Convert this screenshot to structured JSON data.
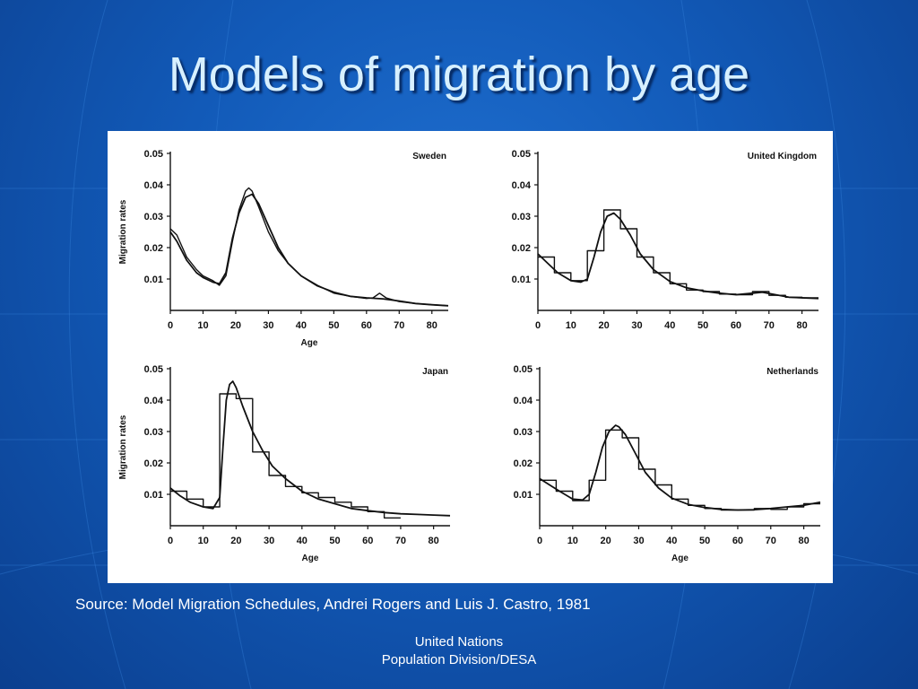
{
  "slide": {
    "title": "Models of migration by age",
    "source": "Source: Model Migration Schedules, Andrei Rogers and Luis J. Castro, 1981",
    "footer_line1": "United Nations",
    "footer_line2": "Population Division/DESA"
  },
  "chart_data": [
    {
      "type": "line",
      "title": "Sweden",
      "ylabel": "Migration rates",
      "xlabel": "Age",
      "xlim": [
        0,
        85
      ],
      "ylim": [
        0,
        0.05
      ],
      "xticks": [
        "0",
        "10",
        "20",
        "30",
        "40",
        "50",
        "60",
        "70",
        "80"
      ],
      "yticks": [
        "0.01",
        "0.02",
        "0.03",
        "0.04",
        "0.05"
      ],
      "series": [
        {
          "x": [
            0,
            2,
            5,
            8,
            10,
            13,
            15,
            17,
            19,
            21,
            23,
            24,
            25,
            27,
            30,
            33,
            36,
            40,
            45,
            50,
            55,
            60,
            62,
            64,
            66,
            70,
            75,
            80,
            85
          ],
          "y": [
            0.026,
            0.024,
            0.017,
            0.013,
            0.011,
            0.0095,
            0.008,
            0.011,
            0.022,
            0.032,
            0.038,
            0.039,
            0.038,
            0.033,
            0.025,
            0.019,
            0.015,
            0.011,
            0.008,
            0.0055,
            0.0045,
            0.0038,
            0.004,
            0.0055,
            0.004,
            0.0028,
            0.0022,
            0.0018,
            0.0015
          ]
        },
        {
          "x": [
            0,
            2,
            5,
            8,
            10,
            13,
            15,
            17,
            19,
            21,
            23,
            25,
            27,
            30,
            33,
            36,
            40,
            45,
            50,
            55,
            60,
            65,
            70,
            75,
            80,
            85
          ],
          "y": [
            0.025,
            0.022,
            0.016,
            0.012,
            0.0105,
            0.009,
            0.0085,
            0.012,
            0.023,
            0.031,
            0.036,
            0.037,
            0.034,
            0.027,
            0.02,
            0.015,
            0.011,
            0.0078,
            0.0058,
            0.0045,
            0.004,
            0.0037,
            0.003,
            0.0022,
            0.0018,
            0.0015
          ]
        }
      ]
    },
    {
      "type": "line",
      "title": "United Kingdom",
      "ylabel": "",
      "xlabel": "",
      "xlim": [
        0,
        85
      ],
      "ylim": [
        0,
        0.05
      ],
      "xticks": [
        "0",
        "10",
        "20",
        "30",
        "40",
        "50",
        "60",
        "70",
        "80"
      ],
      "yticks": [
        "0.01",
        "0.02",
        "0.03",
        "0.04",
        "0.05"
      ],
      "series": [
        {
          "x": [
            0,
            5,
            5,
            10,
            10,
            15,
            15,
            20,
            20,
            25,
            25,
            30,
            30,
            35,
            35,
            40,
            40,
            45,
            45,
            50,
            50,
            55,
            55,
            60,
            60,
            65,
            65,
            70,
            70,
            75,
            75,
            80,
            80,
            85
          ],
          "y": [
            0.017,
            0.017,
            0.012,
            0.012,
            0.0095,
            0.0095,
            0.019,
            0.019,
            0.032,
            0.032,
            0.026,
            0.026,
            0.017,
            0.017,
            0.012,
            0.012,
            0.0085,
            0.0085,
            0.0065,
            0.0065,
            0.006,
            0.006,
            0.0052,
            0.0052,
            0.005,
            0.005,
            0.006,
            0.006,
            0.0048,
            0.0048,
            0.0042,
            0.0042,
            0.004,
            0.004
          ]
        },
        {
          "x": [
            0,
            3,
            6,
            10,
            13,
            15,
            17,
            19,
            21,
            23,
            25,
            28,
            31,
            35,
            40,
            45,
            50,
            55,
            60,
            65,
            68,
            72,
            76,
            80,
            85
          ],
          "y": [
            0.018,
            0.015,
            0.012,
            0.0095,
            0.009,
            0.01,
            0.017,
            0.025,
            0.03,
            0.031,
            0.029,
            0.024,
            0.018,
            0.013,
            0.0092,
            0.0072,
            0.0062,
            0.0055,
            0.005,
            0.0055,
            0.0058,
            0.005,
            0.0042,
            0.004,
            0.0038
          ]
        }
      ]
    },
    {
      "type": "line",
      "title": "Japan",
      "ylabel": "Migration rates",
      "xlabel": "Age",
      "xlim": [
        0,
        85
      ],
      "ylim": [
        0,
        0.05
      ],
      "xticks": [
        "0",
        "10",
        "20",
        "30",
        "40",
        "50",
        "60",
        "70",
        "80"
      ],
      "yticks": [
        "0.01",
        "0.02",
        "0.03",
        "0.04",
        "0.05"
      ],
      "series": [
        {
          "x": [
            0,
            5,
            5,
            10,
            10,
            15,
            15,
            20,
            20,
            25,
            25,
            30,
            30,
            35,
            35,
            40,
            40,
            45,
            45,
            50,
            50,
            55,
            55,
            60,
            60,
            65,
            65,
            70
          ],
          "y": [
            0.011,
            0.011,
            0.0085,
            0.0085,
            0.006,
            0.006,
            0.042,
            0.042,
            0.0405,
            0.0405,
            0.0235,
            0.0235,
            0.016,
            0.016,
            0.0125,
            0.0125,
            0.0105,
            0.0105,
            0.009,
            0.009,
            0.0075,
            0.0075,
            0.006,
            0.006,
            0.0045,
            0.0045,
            0.0025,
            0.0025
          ]
        },
        {
          "x": [
            0,
            3,
            6,
            10,
            13,
            15,
            16,
            17,
            18,
            19,
            20,
            22,
            25,
            28,
            31,
            35,
            40,
            45,
            50,
            55,
            60,
            65,
            70,
            75,
            80,
            85
          ],
          "y": [
            0.012,
            0.0095,
            0.0075,
            0.006,
            0.0055,
            0.009,
            0.025,
            0.04,
            0.045,
            0.046,
            0.044,
            0.038,
            0.03,
            0.024,
            0.019,
            0.015,
            0.011,
            0.0085,
            0.007,
            0.0055,
            0.0048,
            0.0042,
            0.0038,
            0.0036,
            0.0034,
            0.0032
          ]
        }
      ]
    },
    {
      "type": "line",
      "title": "Netherlands",
      "ylabel": "",
      "xlabel": "Age",
      "xlim": [
        0,
        85
      ],
      "ylim": [
        0,
        0.05
      ],
      "xticks": [
        "0",
        "10",
        "20",
        "30",
        "40",
        "50",
        "60",
        "70",
        "80"
      ],
      "yticks": [
        "0.01",
        "0.02",
        "0.03",
        "0.04",
        "0.05"
      ],
      "series": [
        {
          "x": [
            0,
            5,
            5,
            10,
            10,
            15,
            15,
            20,
            20,
            25,
            25,
            30,
            30,
            35,
            35,
            40,
            40,
            45,
            45,
            50,
            50,
            55,
            55,
            60,
            60,
            65,
            65,
            70,
            70,
            75,
            75,
            80,
            80,
            85
          ],
          "y": [
            0.0145,
            0.0145,
            0.011,
            0.011,
            0.008,
            0.008,
            0.0145,
            0.0145,
            0.0305,
            0.0305,
            0.028,
            0.028,
            0.018,
            0.018,
            0.013,
            0.013,
            0.0085,
            0.0085,
            0.0065,
            0.0065,
            0.0055,
            0.0055,
            0.005,
            0.005,
            0.005,
            0.005,
            0.0055,
            0.0055,
            0.0052,
            0.0052,
            0.006,
            0.006,
            0.007,
            0.007
          ]
        },
        {
          "x": [
            0,
            3,
            6,
            10,
            13,
            15,
            17,
            19,
            21,
            23,
            24,
            26,
            29,
            32,
            36,
            40,
            45,
            50,
            55,
            60,
            65,
            70,
            75,
            80,
            85
          ],
          "y": [
            0.015,
            0.013,
            0.011,
            0.0085,
            0.0082,
            0.01,
            0.017,
            0.025,
            0.03,
            0.032,
            0.0315,
            0.029,
            0.023,
            0.017,
            0.012,
            0.0088,
            0.0068,
            0.0058,
            0.0052,
            0.005,
            0.0051,
            0.0055,
            0.006,
            0.0065,
            0.0075
          ]
        }
      ]
    }
  ]
}
